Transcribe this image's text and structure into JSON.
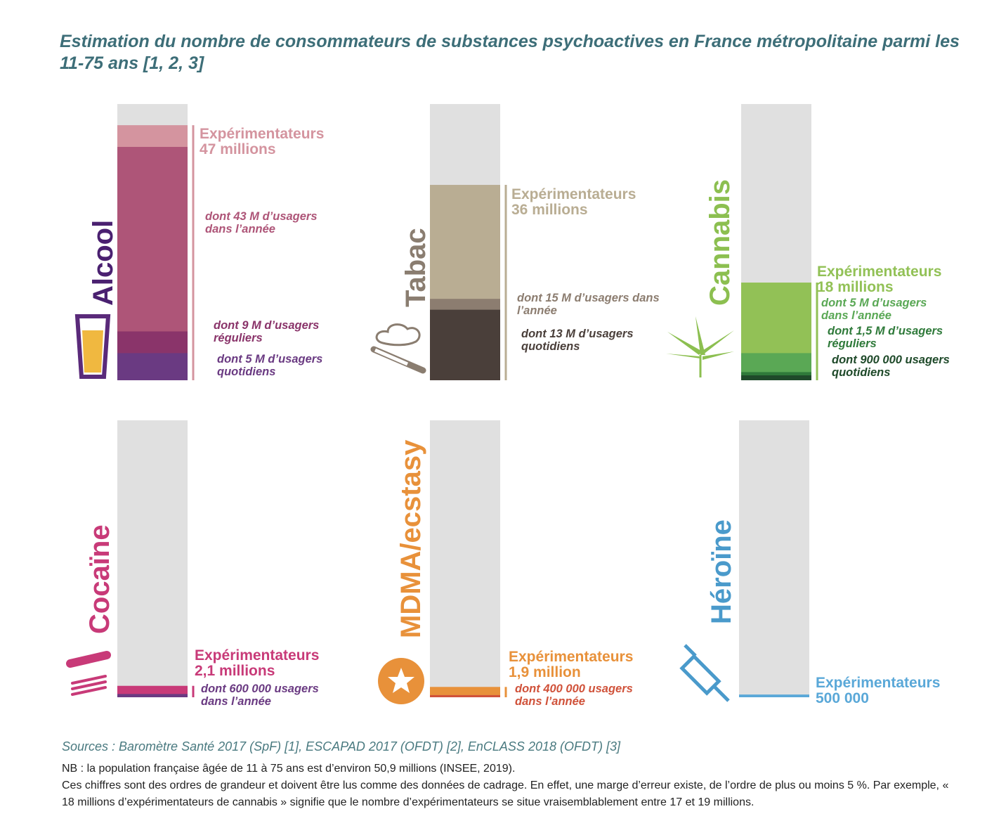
{
  "title": "Estimation du nombre de consommateurs de substances psychoactives en France métropolitaine parmi les 11-75 ans [1, 2, 3]",
  "chart_data": [
    {
      "type": "bar",
      "title": "Alcool",
      "title_color": "#4a2070",
      "ylim": [
        0,
        50.9
      ],
      "series": [
        {
          "name": "Expérimentateurs",
          "values": [
            47
          ],
          "value_labels": [
            "47 millions"
          ],
          "color": "#d4949f"
        },
        {
          "name": "dont 43 M d’usagers dans l’année",
          "values": [
            43
          ],
          "color": "#ae5578"
        },
        {
          "name": "dont 9 M d’usagers réguliers",
          "values": [
            9
          ],
          "color": "#8a346a"
        },
        {
          "name": "dont 5 M d’usagers quotidiens",
          "values": [
            5
          ],
          "color": "#6a3a82"
        }
      ]
    },
    {
      "type": "bar",
      "title": "Tabac",
      "title_color": "#8a7d70",
      "ylim": [
        0,
        50.9
      ],
      "series": [
        {
          "name": "Expérimentateurs",
          "values": [
            36
          ],
          "value_labels": [
            "36 millions"
          ],
          "color": "#b9ad93"
        },
        {
          "name": "dont 15 M d’usagers dans l’année",
          "values": [
            15
          ],
          "color": "#8c7d70"
        },
        {
          "name": "dont 13 M d’usagers quotidiens",
          "values": [
            13
          ],
          "color": "#4a3f3a"
        }
      ]
    },
    {
      "type": "bar",
      "title": "Cannabis",
      "title_color": "#8cbf50",
      "ylim": [
        0,
        50.9
      ],
      "series": [
        {
          "name": "Expérimentateurs",
          "values": [
            18
          ],
          "value_labels": [
            "18 millions"
          ],
          "color": "#92c156"
        },
        {
          "name": "dont 5 M d’usagers dans l’année",
          "values": [
            5
          ],
          "color": "#5aa855"
        },
        {
          "name": "dont 1,5 M d’usagers réguliers",
          "values": [
            1.5
          ],
          "color": "#2f7a3a"
        },
        {
          "name": "dont 900 000 usagers quotidiens",
          "values": [
            0.9
          ],
          "color": "#1f4a2a"
        }
      ]
    },
    {
      "type": "bar",
      "title": "Cocaïne",
      "title_color": "#c83a78",
      "ylim": [
        0,
        50.9
      ],
      "series": [
        {
          "name": "Expérimentateurs",
          "values": [
            2.1
          ],
          "value_labels": [
            "2,1 millions"
          ],
          "color": "#c83a78"
        },
        {
          "name": "dont 600 000 usagers dans l’année",
          "values": [
            0.6
          ],
          "color": "#6a3a82"
        }
      ]
    },
    {
      "type": "bar",
      "title": "MDMA/ecstasy",
      "title_color": "#e8913a",
      "ylim": [
        0,
        50.9
      ],
      "series": [
        {
          "name": "Expérimentateurs",
          "values": [
            1.9
          ],
          "value_labels": [
            "1,9 million"
          ],
          "color": "#e8913a"
        },
        {
          "name": "dont 400 000 usagers dans l’année",
          "values": [
            0.4
          ],
          "color": "#d0523a"
        }
      ]
    },
    {
      "type": "bar",
      "title": "Héroïne",
      "title_color": "#4a9acb",
      "ylim": [
        0,
        50.9
      ],
      "series": [
        {
          "name": "Expérimentateurs",
          "values": [
            0.5
          ],
          "value_labels": [
            "500 000"
          ],
          "color": "#5aa8d8"
        }
      ]
    }
  ],
  "sources": "Sources : Baromètre Santé 2017 (SpF) [1], ESCAPAD 2017 (OFDT) [2], EnCLASS 2018 (OFDT) [3]",
  "notes": [
    "NB : la population française âgée de 11 à 75 ans est d’environ 50,9 millions (INSEE, 2019).",
    "Ces chiffres sont des ordres de grandeur et doivent être lus comme des données de cadrage. En effet, une marge d’erreur existe, de l’ordre de plus ou moins 5 %. Par exemple, « 18 millions d’expérimentateurs de cannabis » signifie que le nombre d’expérimentateurs se situe vraisemblablement entre 17 et 19 millions."
  ]
}
